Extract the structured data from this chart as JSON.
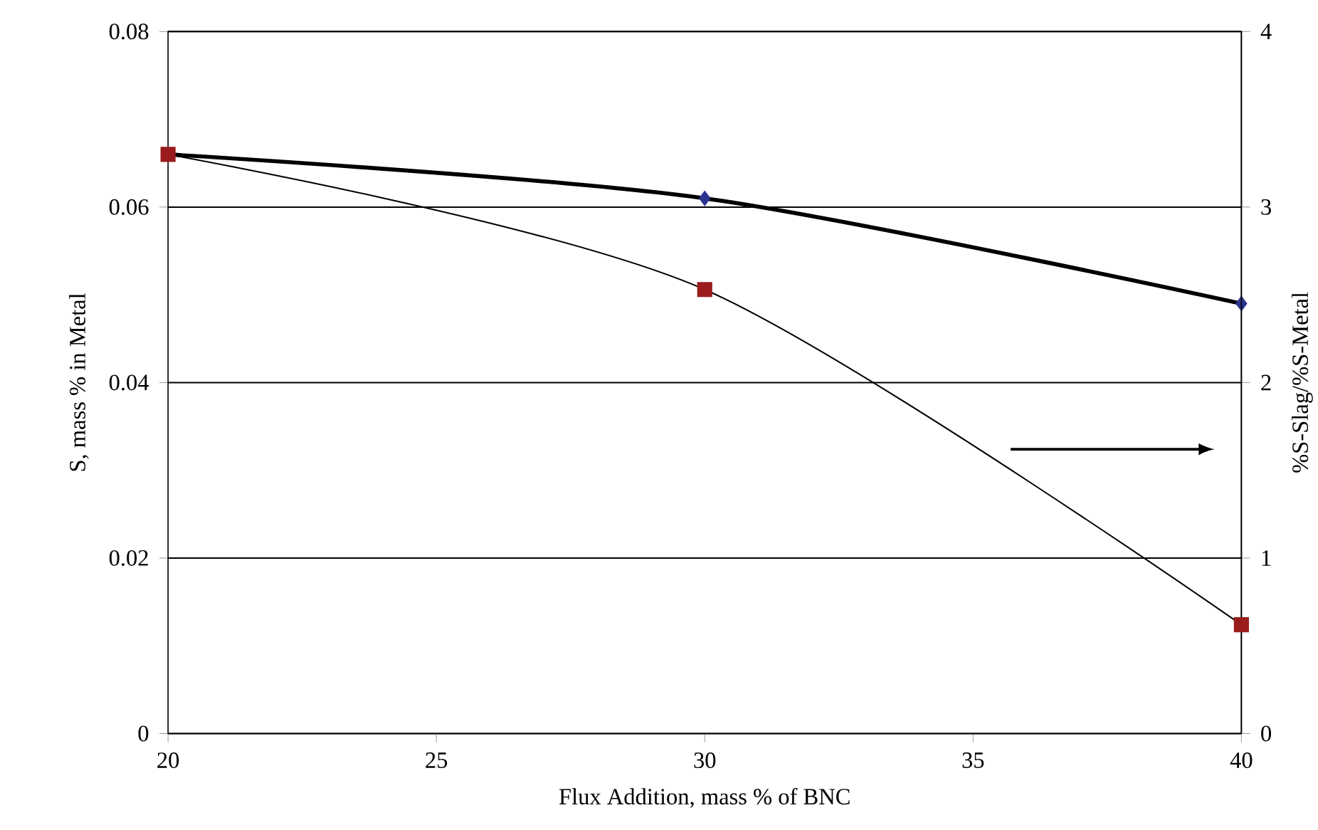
{
  "chart_data": {
    "type": "line",
    "xlabel": "Flux Addition, mass % of BNC",
    "ylabel": "S, mass % in Metal",
    "y2label": "%S-Slag/%S-Metal",
    "x": [
      20,
      30,
      40
    ],
    "series": [
      {
        "color": "#2b3590",
        "marker": "diamond",
        "values": [
          0.066,
          0.061,
          0.049
        ]
      },
      {
        "color": "#9b1c1c",
        "marker": "square",
        "axis": "y2",
        "values": [
          3.3,
          2.53,
          0.62
        ]
      }
    ],
    "xlim": [
      20,
      40
    ],
    "xticks": [
      20,
      25,
      30,
      35,
      40
    ],
    "ylim": [
      0,
      0.08
    ],
    "yticks": [
      0,
      0.02,
      0.04,
      0.06,
      0.08
    ],
    "y2lim": [
      0,
      4
    ],
    "y2ticks": [
      0,
      1,
      2,
      3,
      4
    ],
    "grid": "y"
  }
}
